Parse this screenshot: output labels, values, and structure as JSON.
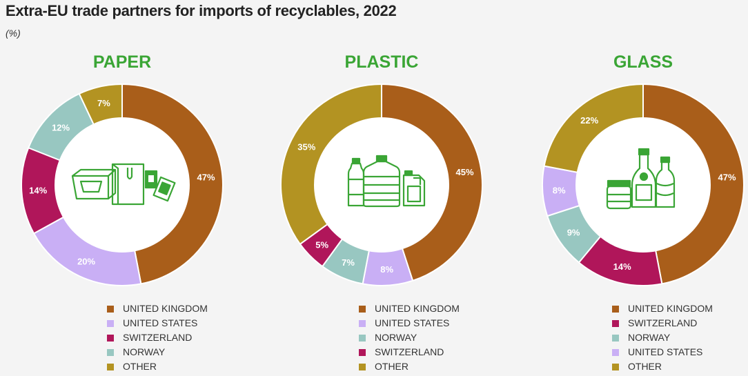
{
  "title": "Extra-EU trade partners for imports of recyclables, 2022",
  "subtitle": "(%)",
  "chart_data": [
    {
      "type": "pie",
      "title": "PAPER",
      "categories": [
        "UNITED KINGDOM",
        "UNITED STATES",
        "SWITZERLAND",
        "NORWAY",
        "OTHER"
      ],
      "values": [
        47,
        20,
        14,
        12,
        7
      ],
      "labels": [
        "47%",
        "20%",
        "14%",
        "12%",
        "7%"
      ],
      "colors": [
        "#a95e1a",
        "#c9aff5",
        "#b0165a",
        "#98c7c1",
        "#b39322"
      ],
      "icon": "paper-packaging-icon"
    },
    {
      "type": "pie",
      "title": "PLASTIC",
      "categories": [
        "UNITED KINGDOM",
        "UNITED STATES",
        "NORWAY",
        "SWITZERLAND",
        "OTHER"
      ],
      "values": [
        45,
        8,
        7,
        5,
        35
      ],
      "labels": [
        "45%",
        "8%",
        "7%",
        "5%",
        "35%"
      ],
      "colors": [
        "#a95e1a",
        "#c9aff5",
        "#98c7c1",
        "#b0165a",
        "#b39322"
      ],
      "icon": "plastic-bottles-icon"
    },
    {
      "type": "pie",
      "title": "GLASS",
      "categories": [
        "UNITED KINGDOM",
        "SWITZERLAND",
        "NORWAY",
        "UNITED STATES",
        "OTHER"
      ],
      "values": [
        47,
        14,
        9,
        8,
        22
      ],
      "labels": [
        "47%",
        "14%",
        "9%",
        "8%",
        "22%"
      ],
      "colors": [
        "#a95e1a",
        "#b0165a",
        "#98c7c1",
        "#c9aff5",
        "#b39322"
      ],
      "icon": "glass-jars-bottles-icon"
    }
  ]
}
